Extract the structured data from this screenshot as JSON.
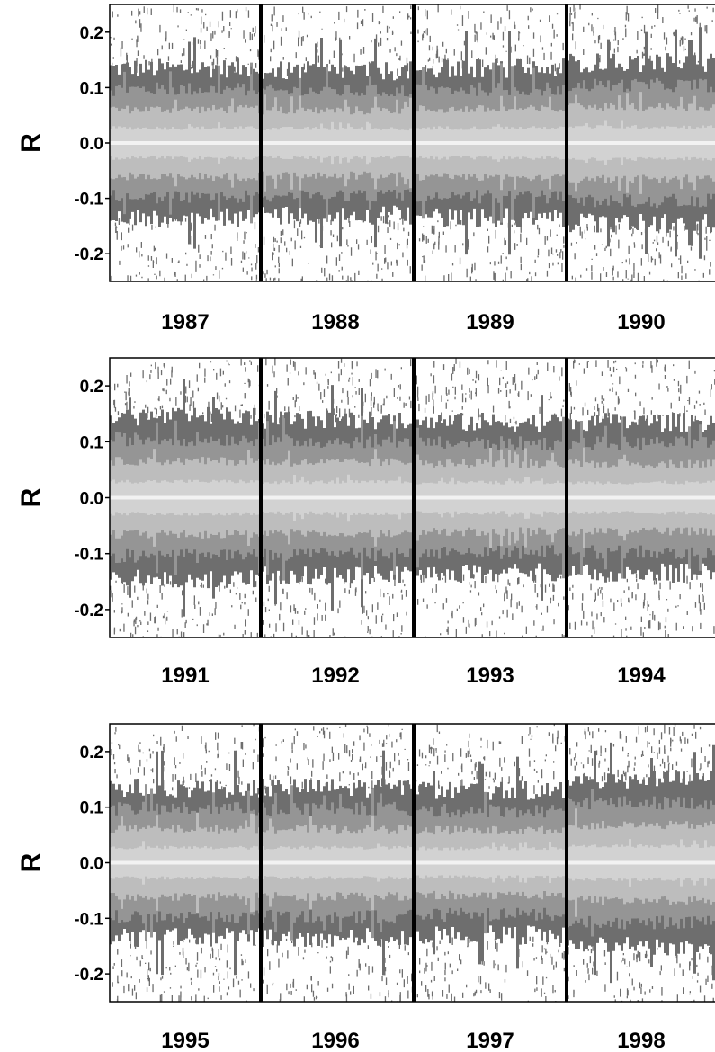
{
  "chart_data": [
    {
      "type": "heatmap",
      "ylabel": "R",
      "ylim": [
        -0.25,
        0.25
      ],
      "yticks": [
        "0.2",
        "0.1",
        "0.0",
        "-0.1",
        "-0.2"
      ],
      "years": [
        "1987",
        "1988",
        "1989",
        "1990"
      ],
      "band_halfwidth": [
        0.135,
        0.13,
        0.135,
        0.145
      ],
      "grid": false
    },
    {
      "type": "heatmap",
      "ylabel": "R",
      "ylim": [
        -0.25,
        0.25
      ],
      "yticks": [
        "0.2",
        "0.1",
        "0.0",
        "-0.1",
        "-0.2"
      ],
      "years": [
        "1991",
        "1992",
        "1993",
        "1994"
      ],
      "band_halfwidth": [
        0.145,
        0.14,
        0.135,
        0.135
      ],
      "grid": false
    },
    {
      "type": "heatmap",
      "ylabel": "R",
      "ylim": [
        -0.25,
        0.25
      ],
      "yticks": [
        "0.2",
        "0.1",
        "0.0",
        "-0.1",
        "-0.2"
      ],
      "years": [
        "1995",
        "1996",
        "1997",
        "1998"
      ],
      "band_halfwidth": [
        0.135,
        0.135,
        0.13,
        0.15
      ],
      "grid": false
    }
  ],
  "colors": {
    "outer": "#6e6e6e",
    "mid": "#959595",
    "inner": "#bdbdbd",
    "core": "#d2d2d2",
    "zero_line": "#f2f2f2",
    "frame": "#000000"
  }
}
